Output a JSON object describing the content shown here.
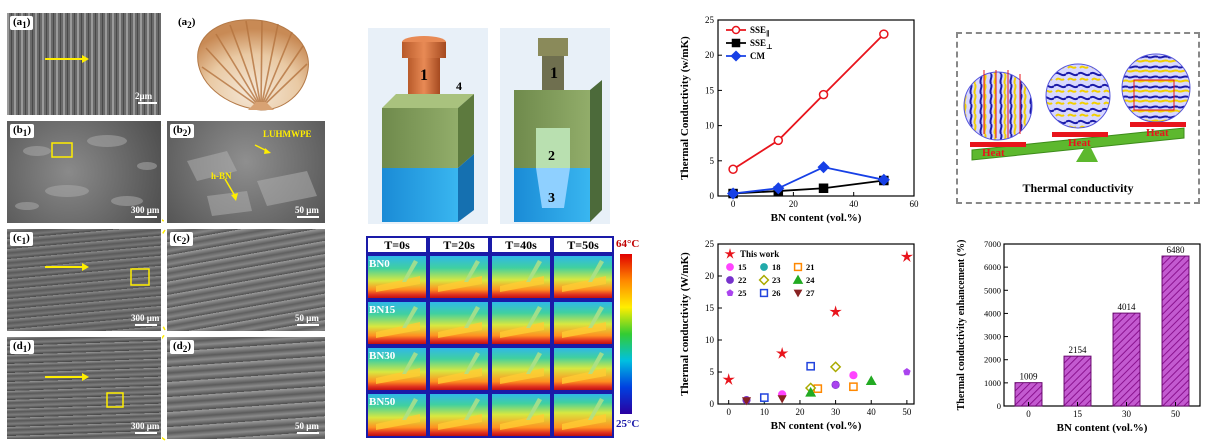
{
  "sem_panels": {
    "a1": {
      "label_main": "a",
      "label_sub": "1",
      "scale": "2μm"
    },
    "a2": {
      "label_main": "a",
      "label_sub": "2"
    },
    "b1": {
      "label_main": "b",
      "label_sub": "1",
      "scale": "300 μm"
    },
    "b2": {
      "label_main": "b",
      "label_sub": "2",
      "scale": "50 μm",
      "ann1": "LUHMWPE",
      "ann2": "h-BN"
    },
    "c1": {
      "label_main": "c",
      "label_sub": "1",
      "scale": "300 μm"
    },
    "c2": {
      "label_main": "c",
      "label_sub": "2",
      "scale": "50 μm"
    },
    "d1": {
      "label_main": "d",
      "label_sub": "1",
      "scale": "300 μm"
    },
    "d2": {
      "label_main": "d",
      "label_sub": "2",
      "scale": "50 μm"
    }
  },
  "mold": {
    "n1": "1",
    "n2": "2",
    "n3": "3",
    "n4": "4",
    "n1b": "1"
  },
  "thermal_grid": {
    "headers": [
      "T=0s",
      "T=20s",
      "T=40s",
      "T=50s"
    ],
    "rows": [
      "BN0",
      "BN15",
      "BN30",
      "BN50"
    ],
    "colorbar_max": "64°C",
    "colorbar_min": "25°C"
  },
  "schematic": {
    "heat": "Heat",
    "caption": "Thermal conductivity"
  },
  "colors": {
    "red": "#e8141c",
    "black": "#000000",
    "blue": "#1740e6",
    "bar": "#b020c0",
    "cbar_blue": "#1a1aa8"
  },
  "chart_data": [
    {
      "type": "line",
      "xlabel": "BN content (vol.%)",
      "ylabel": "Thermal Conductivity (w/mK)",
      "xlim": [
        -5,
        60
      ],
      "ylim": [
        0,
        25
      ],
      "xticks": [
        "0",
        "20",
        "40",
        "60"
      ],
      "yticks": [
        "0",
        "5",
        "10",
        "15",
        "20",
        "25"
      ],
      "legend_position": "top-left",
      "series": [
        {
          "name": "SSE",
          "name_sub": "∥",
          "color": "#e8141c",
          "marker": "circle-open",
          "x": [
            0,
            15,
            30,
            50
          ],
          "y": [
            3.8,
            7.9,
            14.4,
            23.0
          ]
        },
        {
          "name": "SSE",
          "name_sub": "⊥",
          "color": "#000000",
          "marker": "square",
          "x": [
            0,
            15,
            30,
            50
          ],
          "y": [
            0.35,
            0.7,
            1.1,
            2.2
          ]
        },
        {
          "name": "CM",
          "name_sub": "",
          "color": "#1740e6",
          "marker": "diamond",
          "x": [
            0,
            15,
            30,
            50
          ],
          "y": [
            0.35,
            1.1,
            4.1,
            2.3
          ]
        }
      ]
    },
    {
      "type": "scatter",
      "xlabel": "BN content (vol.%)",
      "ylabel": "Thermal conductivity (W/mK)",
      "xlim": [
        -3,
        52
      ],
      "ylim": [
        0,
        25
      ],
      "xticks": [
        "0",
        "10",
        "20",
        "30",
        "40",
        "50"
      ],
      "yticks": [
        "0",
        "5",
        "10",
        "15",
        "20",
        "25"
      ],
      "legend_position": "top-left",
      "series": [
        {
          "name": "This work",
          "color": "#e8141c",
          "marker": "star",
          "points": [
            [
              0,
              3.8
            ],
            [
              15,
              7.9
            ],
            [
              30,
              14.4
            ],
            [
              50,
              23.0
            ]
          ]
        },
        {
          "name": "15",
          "color": "#ff44ff",
          "marker": "circle-half",
          "points": [
            [
              15,
              1.5
            ],
            [
              35,
              4.5
            ]
          ]
        },
        {
          "name": "18",
          "color": "#22aaaa",
          "marker": "circle-half",
          "points": [
            [
              10,
              0.9
            ]
          ]
        },
        {
          "name": "21",
          "color": "#ff8800",
          "marker": "square-half",
          "points": [
            [
              25,
              2.4
            ],
            [
              35,
              2.7
            ]
          ]
        },
        {
          "name": "22",
          "color": "#7733cc",
          "marker": "circle-half",
          "points": [
            [
              5,
              0.6
            ],
            [
              30,
              3.0
            ]
          ]
        },
        {
          "name": "23",
          "color": "#aaaa00",
          "marker": "diamond-half",
          "points": [
            [
              23,
              2.5
            ],
            [
              30,
              5.8
            ]
          ]
        },
        {
          "name": "24",
          "color": "#22aa22",
          "marker": "triangle-half",
          "points": [
            [
              23,
              1.8
            ],
            [
              40,
              3.6
            ]
          ]
        },
        {
          "name": "25",
          "color": "#aa44ee",
          "marker": "pentagon",
          "points": [
            [
              30,
              3.0
            ],
            [
              50,
              5.0
            ]
          ]
        },
        {
          "name": "26",
          "color": "#2244dd",
          "marker": "square-half",
          "points": [
            [
              23,
              5.9
            ],
            [
              10,
              1.0
            ]
          ]
        },
        {
          "name": "27",
          "color": "#882222",
          "marker": "triangle-down",
          "points": [
            [
              5,
              0.5
            ],
            [
              15,
              0.8
            ]
          ]
        }
      ]
    },
    {
      "type": "bar",
      "xlabel": "BN content (vol.%)",
      "ylabel": "Thermal conductivity enhancement (%)",
      "categories": [
        "0",
        "15",
        "30",
        "50"
      ],
      "values": [
        1009,
        2154,
        4014,
        6480
      ],
      "data_labels": [
        "1009",
        "2154",
        "4014",
        "6480"
      ],
      "ylim": [
        0,
        7000
      ],
      "yticks": [
        "0",
        "1000",
        "2000",
        "3000",
        "4000",
        "5000",
        "6000",
        "7000"
      ]
    }
  ]
}
